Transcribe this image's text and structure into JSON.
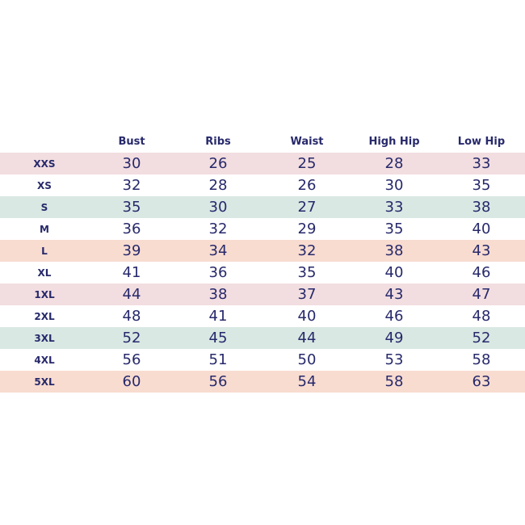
{
  "colors": {
    "text": "#27296b",
    "pink": "#f2dde0",
    "mint": "#d9e8e3",
    "peach": "#f8dcd0",
    "white": "#ffffff"
  },
  "headers": [
    "Bust",
    "Ribs",
    "Waist",
    "High Hip",
    "Low Hip"
  ],
  "rows": [
    {
      "size": "XXS",
      "values": [
        "30",
        "26",
        "25",
        "28",
        "33"
      ],
      "color": "pink"
    },
    {
      "size": "XS",
      "values": [
        "32",
        "28",
        "26",
        "30",
        "35"
      ],
      "color": "white"
    },
    {
      "size": "S",
      "values": [
        "35",
        "30",
        "27",
        "33",
        "38"
      ],
      "color": "mint"
    },
    {
      "size": "M",
      "values": [
        "36",
        "32",
        "29",
        "35",
        "40"
      ],
      "color": "white"
    },
    {
      "size": "L",
      "values": [
        "39",
        "34",
        "32",
        "38",
        "43"
      ],
      "color": "peach"
    },
    {
      "size": "XL",
      "values": [
        "41",
        "36",
        "35",
        "40",
        "46"
      ],
      "color": "white"
    },
    {
      "size": "1XL",
      "values": [
        "44",
        "38",
        "37",
        "43",
        "47"
      ],
      "color": "pink"
    },
    {
      "size": "2XL",
      "values": [
        "48",
        "41",
        "40",
        "46",
        "48"
      ],
      "color": "white"
    },
    {
      "size": "3XL",
      "values": [
        "52",
        "45",
        "44",
        "49",
        "52"
      ],
      "color": "mint"
    },
    {
      "size": "4XL",
      "values": [
        "56",
        "51",
        "50",
        "53",
        "58"
      ],
      "color": "white"
    },
    {
      "size": "5XL",
      "values": [
        "60",
        "56",
        "54",
        "58",
        "63"
      ],
      "color": "peach"
    }
  ]
}
